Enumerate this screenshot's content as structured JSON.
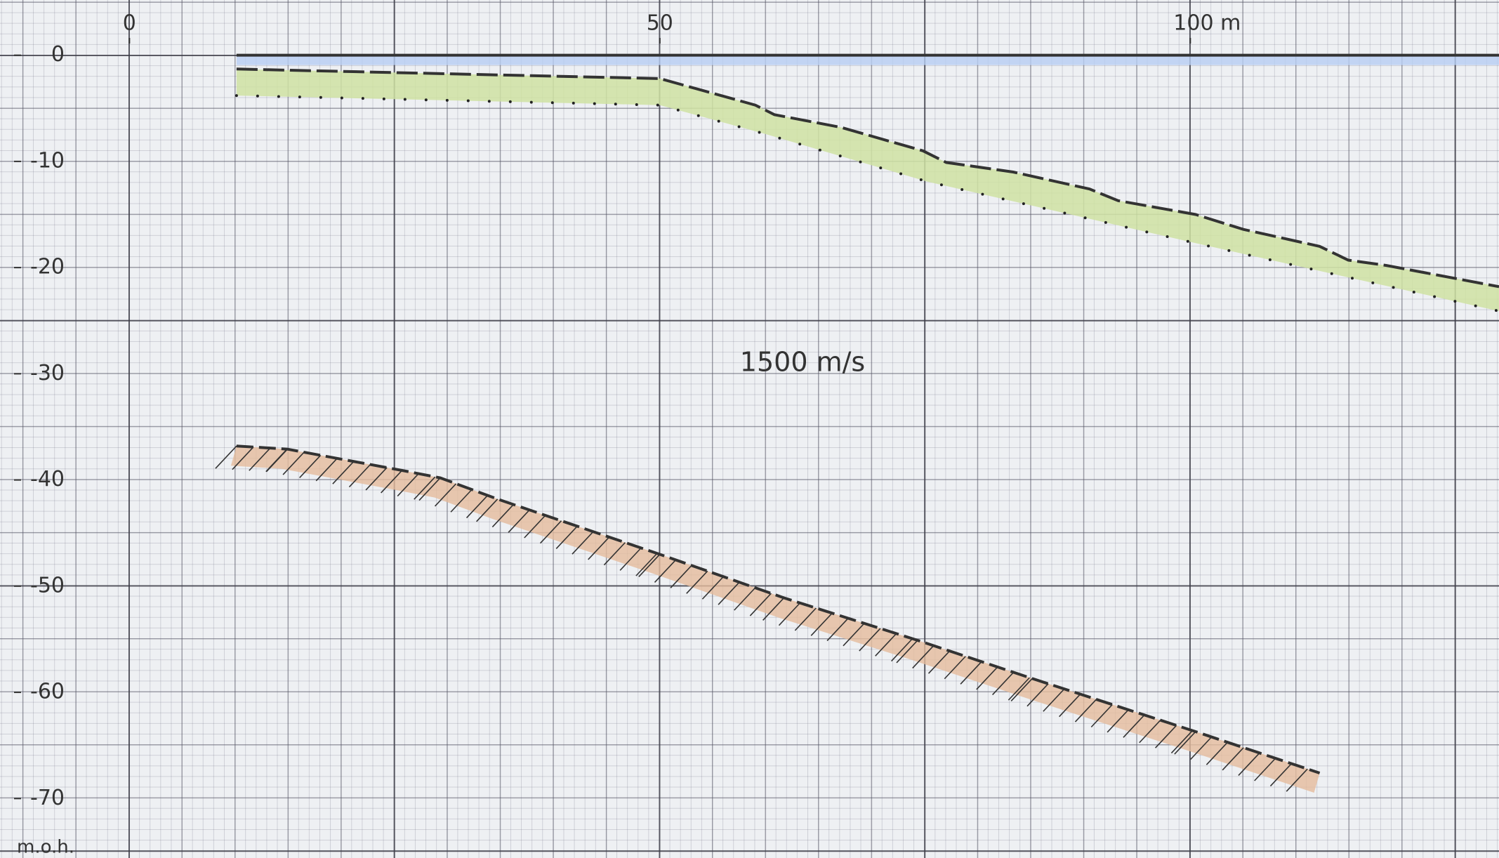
{
  "chart_data": {
    "type": "line",
    "annotations": [
      "1500 m/s"
    ],
    "y_label": "m.o.h.",
    "xlim": [
      -12.2,
      129.1
    ],
    "ylim": [
      -75.6,
      5.2
    ],
    "xticks": [
      0,
      50,
      {
        "value": 100,
        "label": "100 m"
      }
    ],
    "yticks": [
      0,
      -10,
      -20,
      -30,
      -40,
      -50,
      -60,
      -70
    ],
    "series": [
      {
        "color": "#7aa3e6",
        "fill": "#b7cdf2",
        "x": [
          10.1,
          129.1
        ],
        "values": [
          0,
          0
        ]
      },
      {
        "color": "#333333",
        "fill": "#cfe2a2",
        "x": [
          10.1,
          50,
          59,
          60.8,
          67.1,
          74.8,
          77,
          83.3,
          90.5,
          93.2,
          100.5,
          105,
          112.2,
          114.9,
          118.5,
          129.1
        ],
        "values": [
          -1.3,
          -2.2,
          -4.7,
          -5.6,
          -6.8,
          -9.0,
          -10.1,
          -11.0,
          -12.6,
          -13.7,
          -15.0,
          -16.4,
          -18.0,
          -19.3,
          -19.8,
          -21.8
        ]
      },
      {
        "color": "#222222",
        "x": [
          10.1,
          50,
          59.9,
          75.2,
          100.5,
          129.1
        ],
        "values": [
          -3.8,
          -4.7,
          -7.4,
          -11.9,
          -17.7,
          -24.1
        ]
      },
      {
        "color": "#333333",
        "fill": "#e5bb9c",
        "x": [
          10.1,
          14.9,
          25.7,
          29.3,
          34.7,
          50,
          61.7,
          74.3,
          85.1,
          100.5,
          112.2
        ],
        "values": [
          -36.8,
          -37.1,
          -39.1,
          -39.8,
          -41.8,
          -47,
          -51.1,
          -55.1,
          -58.7,
          -63.7,
          -67.6
        ]
      }
    ]
  }
}
